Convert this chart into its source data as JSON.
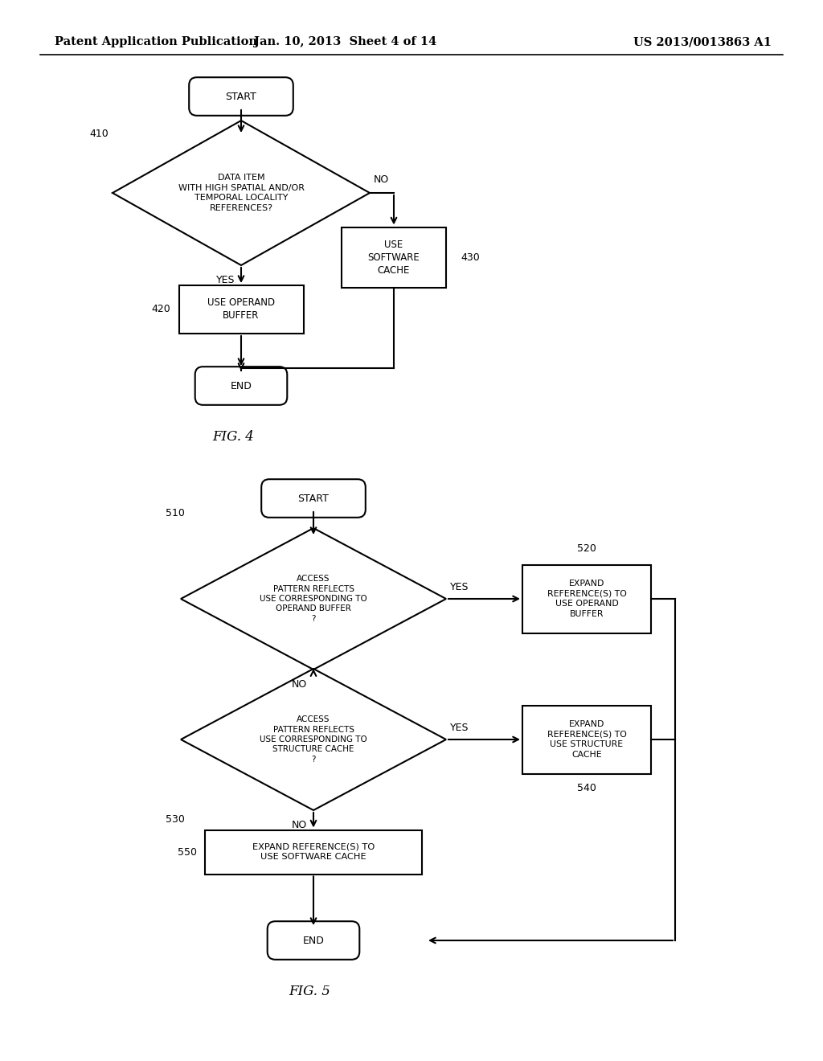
{
  "bg_color": "#ffffff",
  "header_left": "Patent Application Publication",
  "header_mid": "Jan. 10, 2013  Sheet 4 of 14",
  "header_right": "US 2013/0013863 A1",
  "fig4_label": "FIG. 4",
  "fig5_label": "FIG. 5"
}
